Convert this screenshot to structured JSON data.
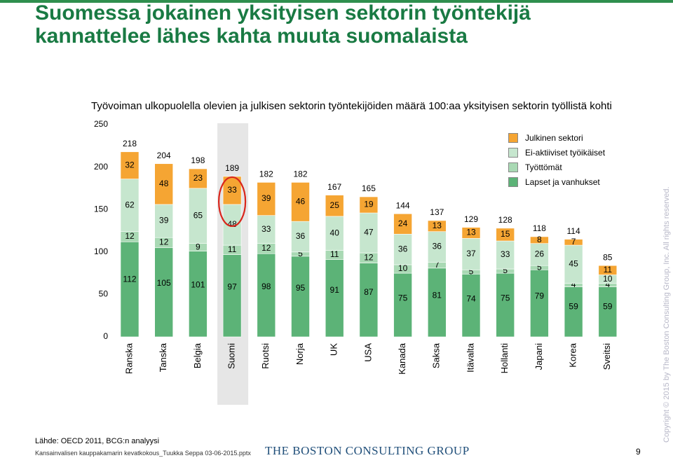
{
  "header": {
    "title": "Suomessa jokainen yksityisen sektorin työntekijä kannattelee lähes kahta muuta suomalaista",
    "subtitle": "Työvoiman ulkopuolella olevien ja julkisen sektorin työntekijöiden määrä 100:aa yksityisen sektorin työllistä kohti"
  },
  "footer": {
    "source": "Lähde: OECD 2011, BCG:n analyysi",
    "file": "Kansainvalisen kauppakamarin kevatkokous_Tuukka Seppa 03-06-2015.pptx",
    "logo_text": "THE BOSTON CONSULTING GROUP",
    "page_number": "9",
    "copyright": "Copyright © 2015 by The Boston Consulting Group, Inc. All rights reserved."
  },
  "colors": {
    "lapset": "#5cb377",
    "tyottomat": "#a9d9b4",
    "ei_aktiiviset": "#c6e6ce",
    "julkinen": "#f5a533",
    "highlight": "#e6e6e6",
    "circle": "#d9261c"
  },
  "chart_data": {
    "type": "bar",
    "stacked": true,
    "title": "Työvoiman ulkopuolella olevien ja julkisen sektorin työntekijöiden määrä 100:aa yksityisen sektorin työllistä kohti",
    "categories": [
      "Ranska",
      "Tanska",
      "Belgia",
      "Suomi",
      "Ruotsi",
      "Norja",
      "UK",
      "USA",
      "Kanada",
      "Saksa",
      "Itävalta",
      "Hollanti",
      "Japani",
      "Korea",
      "Sveitsi"
    ],
    "series": [
      {
        "name": "Lapset ja vanhukset",
        "color": "#5cb377",
        "values": [
          112,
          105,
          101,
          97,
          98,
          95,
          91,
          87,
          75,
          81,
          74,
          75,
          79,
          59,
          59
        ]
      },
      {
        "name": "Työttömät",
        "color": "#a9d9b4",
        "values": [
          12,
          12,
          9,
          11,
          12,
          5,
          11,
          12,
          10,
          7,
          5,
          5,
          5,
          4,
          4
        ]
      },
      {
        "name": "Ei-aktiiviset työikäiset",
        "color": "#c6e6ce",
        "values": [
          62,
          39,
          65,
          48,
          33,
          36,
          40,
          47,
          36,
          36,
          37,
          33,
          26,
          45,
          10
        ]
      },
      {
        "name": "Julkinen sektori",
        "color": "#f5a533",
        "values": [
          32,
          48,
          23,
          33,
          39,
          46,
          25,
          19,
          24,
          13,
          13,
          15,
          8,
          7,
          11
        ]
      }
    ],
    "totals": [
      218,
      204,
      198,
      189,
      182,
      182,
      167,
      165,
      144,
      137,
      129,
      128,
      118,
      114,
      85
    ],
    "ylim": [
      0,
      250
    ],
    "yticks": [
      0,
      50,
      100,
      150,
      200,
      250
    ],
    "highlight_category": "Suomi",
    "legend_position": "top-right",
    "legend_order": [
      "Julkinen sektori",
      "Ei-aktiiviset työikäiset",
      "Työttömät",
      "Lapset ja vanhukset"
    ],
    "grid": false
  }
}
